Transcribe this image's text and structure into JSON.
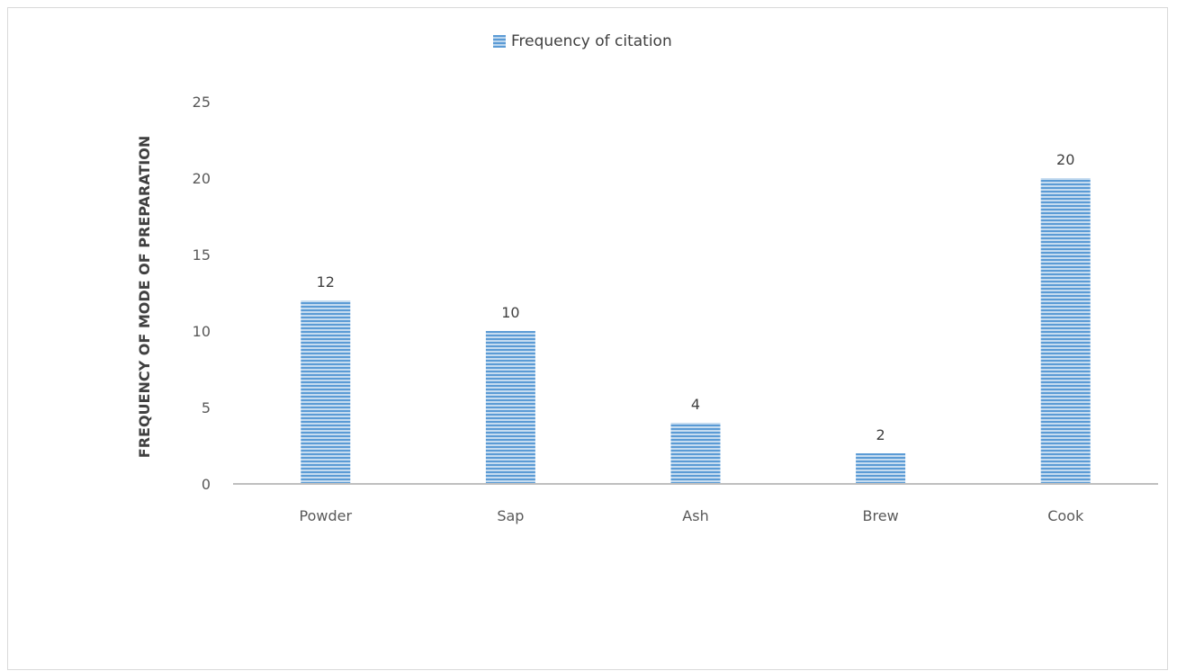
{
  "chart_data": {
    "type": "bar",
    "categories": [
      "Powder",
      "Sap",
      "Ash",
      "Brew",
      "Cook"
    ],
    "series": [
      {
        "name": "Frequency of citation",
        "values": [
          12,
          10,
          4,
          2,
          20
        ]
      }
    ],
    "xlabel": "",
    "ylabel": "FREQUENCY OF MODE OF PREPARATION",
    "ylim": [
      0,
      25
    ],
    "yticks": [
      0,
      5,
      10,
      15,
      20,
      25
    ],
    "grid": false,
    "legend_position": "top-center",
    "colors": {
      "bar": "#5b9bd5",
      "bar_stripe": "#bcd6ee",
      "axis": "#bfbfbf"
    }
  }
}
